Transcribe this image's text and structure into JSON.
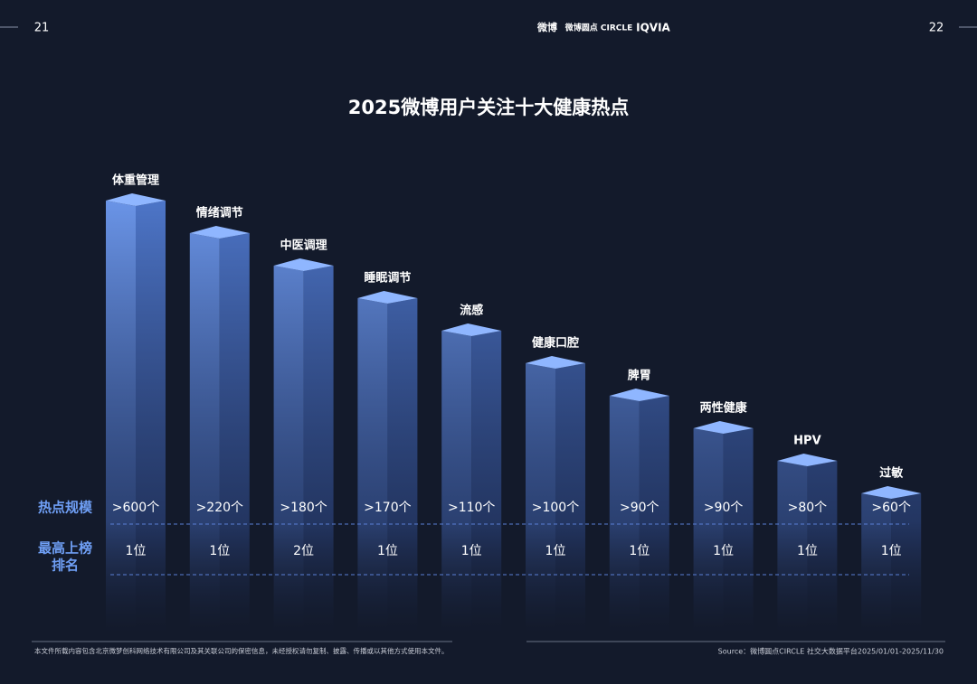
{
  "page": {
    "left_page": "21",
    "right_page": "22",
    "logos": [
      "微博",
      "微博圆点 CIRCLE",
      "IQVIA"
    ],
    "title": "2025微博用户关注十大健康热点",
    "row_labels": {
      "scale": "热点规模",
      "rank": [
        "最高上榜",
        "排名"
      ]
    },
    "items": [
      {
        "name": "体重管理",
        "scale": ">600个",
        "rank": "1位"
      },
      {
        "name": "情绪调节",
        "scale": ">220个",
        "rank": "1位"
      },
      {
        "name": "中医调理",
        "scale": ">180个",
        "rank": "2位"
      },
      {
        "name": "睡眠调节",
        "scale": ">170个",
        "rank": "1位"
      },
      {
        "name": "流感",
        "scale": ">110个",
        "rank": "1位"
      },
      {
        "name": "健康口腔",
        "scale": ">100个",
        "rank": "1位"
      },
      {
        "name": "脾胃",
        "scale": ">90个",
        "rank": "1位"
      },
      {
        "name": "两性健康",
        "scale": ">90个",
        "rank": "1位"
      },
      {
        "name": "HPV",
        "scale": ">80个",
        "rank": "1位"
      },
      {
        "name": "过敏",
        "scale": ">60个",
        "rank": "1位"
      }
    ],
    "footer_left": "本文件所载内容包含北京微梦创科网络技术有限公司及其关联公司的保密信息，未经授权请勿复制、披露、传播或以其他方式使用本文件。",
    "footer_right": "Source：微博圆点CIRCLE 社交大数据平台2025/01/01-2025/11/30"
  }
}
